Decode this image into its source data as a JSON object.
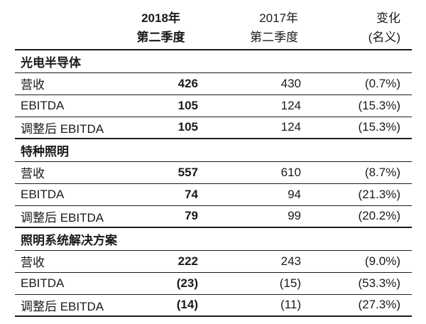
{
  "colors": {
    "background": "#ffffff",
    "text": "#1a1a1a",
    "rule": "#1c1c1c"
  },
  "table": {
    "header": {
      "c2018": {
        "line1": "2018年",
        "line2": "第二季度"
      },
      "c2017": {
        "line1": "2017年",
        "line2": "第二季度"
      },
      "change": {
        "line1": "变化",
        "line2": "(名义)"
      }
    },
    "sections": [
      {
        "title": "光电半导体",
        "rows": [
          {
            "label": "营收",
            "v2018": "426",
            "v2017": "430",
            "change": "(0.7%)"
          },
          {
            "label": "EBITDA",
            "v2018": "105",
            "v2017": "124",
            "change": "(15.3%)"
          },
          {
            "label": "调整后 EBITDA",
            "v2018": "105",
            "v2017": "124",
            "change": "(15.3%)"
          }
        ]
      },
      {
        "title": "特种照明",
        "rows": [
          {
            "label": "营收",
            "v2018": "557",
            "v2017": "610",
            "change": "(8.7%)"
          },
          {
            "label": "EBITDA",
            "v2018": "74",
            "v2017": "94",
            "change": "(21.3%)"
          },
          {
            "label": "调整后 EBITDA",
            "v2018": "79",
            "v2017": "99",
            "change": "(20.2%)"
          }
        ]
      },
      {
        "title": "照明系统解决方案",
        "rows": [
          {
            "label": "营收",
            "v2018": "222",
            "v2017": "243",
            "change": "(9.0%)"
          },
          {
            "label": "EBITDA",
            "v2018": "(23)",
            "v2017": "(15)",
            "change": "(53.3%)"
          },
          {
            "label": "调整后 EBITDA",
            "v2018": "(14)",
            "v2017": "(11)",
            "change": "(27.3%)"
          }
        ]
      }
    ]
  }
}
